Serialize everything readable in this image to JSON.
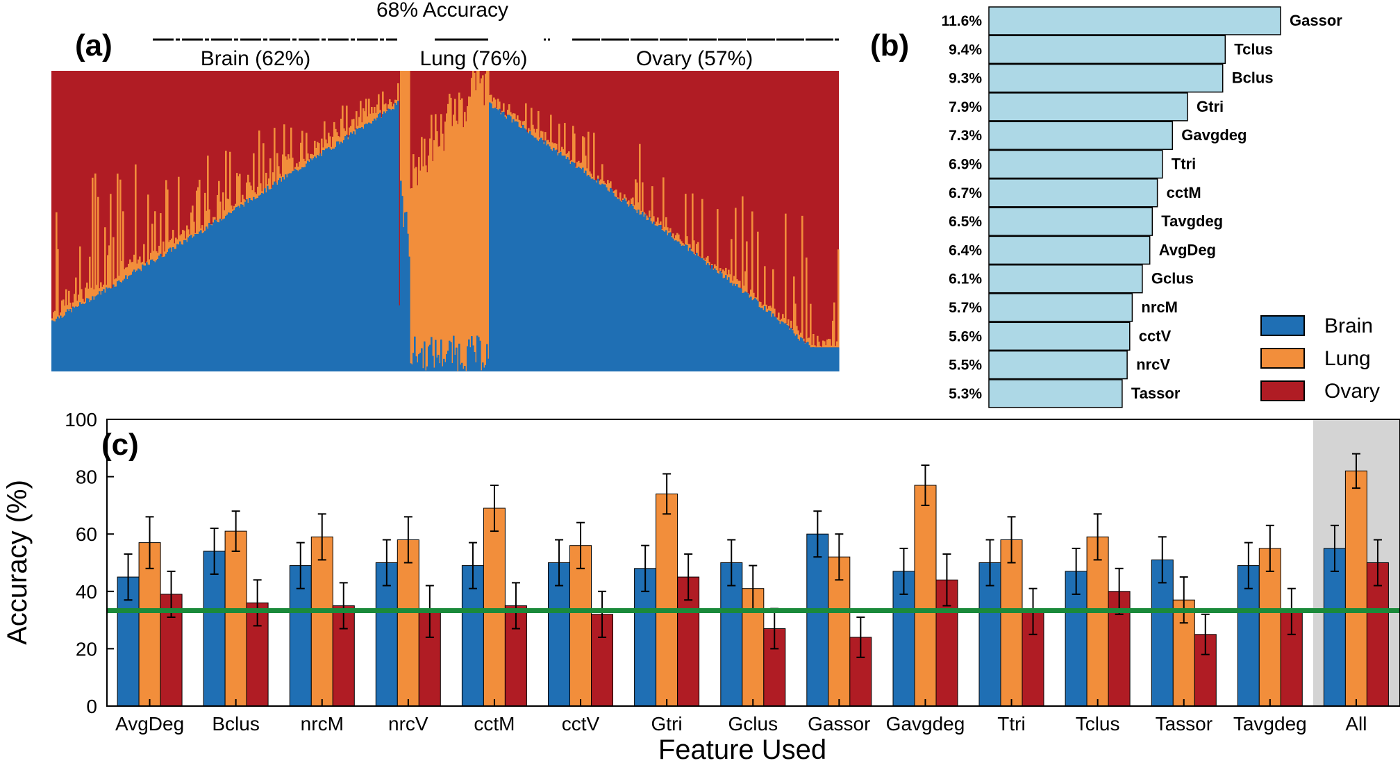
{
  "colors": {
    "brain": "#1f6fb4",
    "lung": "#f28e3b",
    "ovary": "#b01c24",
    "importance_bar": "#add8e6",
    "baseline": "#1a8a3a",
    "all_shade": "#d4d4d4"
  },
  "panel_a": {
    "letter": "(a)",
    "overall_label": "68% Accuracy",
    "group_labels": [
      "Brain (62%)",
      "Lung (76%)",
      "Ovary (57%)"
    ]
  },
  "panel_b": {
    "letter": "(b)"
  },
  "panel_c": {
    "letter": "(c)"
  },
  "legend": {
    "items": [
      {
        "label": "Brain",
        "color_key": "brain"
      },
      {
        "label": "Lung",
        "color_key": "lung"
      },
      {
        "label": "Ovary",
        "color_key": "ovary"
      }
    ]
  },
  "chart_data": [
    {
      "type": "area",
      "panel": "(a)",
      "title": "68% Accuracy",
      "description_groups": [
        "Brain (62%)",
        "Lung (76%)",
        "Ovary (57%)"
      ],
      "series": [
        {
          "name": "Brain",
          "note": "stacked per-sample class probability"
        },
        {
          "name": "Lung",
          "note": "stacked per-sample class probability"
        },
        {
          "name": "Ovary",
          "note": "stacked per-sample class probability"
        }
      ],
      "groups": [
        {
          "name": "Brain",
          "accuracy_pct": 62,
          "brain_start": 0.18,
          "brain_end": 0.89
        },
        {
          "name": "Lung",
          "accuracy_pct": 76,
          "lung_low": 0.03,
          "lung_high": 0.98
        },
        {
          "name": "Ovary",
          "accuracy_pct": 57,
          "brain_start": 0.79,
          "brain_end": 0.1
        }
      ]
    },
    {
      "type": "bar",
      "panel": "(b)",
      "orientation": "horizontal",
      "categories": [
        "Gassor",
        "Tclus",
        "Bclus",
        "Gtri",
        "Gavgdeg",
        "Ttri",
        "cctM",
        "Tavgdeg",
        "AvgDeg",
        "Gclus",
        "nrcM",
        "cctV",
        "nrcV",
        "Tassor"
      ],
      "value_labels": [
        "11.6%",
        "9.4%",
        "9.3%",
        "7.9%",
        "7.3%",
        "6.9%",
        "6.7%",
        "6.5%",
        "6.4%",
        "6.1%",
        "5.7%",
        "5.6%",
        "5.5%",
        "5.3%"
      ],
      "values": [
        11.6,
        9.4,
        9.3,
        7.9,
        7.3,
        6.9,
        6.7,
        6.5,
        6.4,
        6.1,
        5.7,
        5.6,
        5.5,
        5.3
      ]
    },
    {
      "type": "bar",
      "panel": "(c)",
      "categories": [
        "AvgDeg",
        "Bclus",
        "nrcM",
        "nrcV",
        "cctM",
        "cctV",
        "Gtri",
        "Gclus",
        "Gassor",
        "Gavgdeg",
        "Ttri",
        "Tclus",
        "Tassor",
        "Tavgdeg",
        "All"
      ],
      "xlabel": "Feature Used",
      "ylabel": "Accuracy (%)",
      "ylim": [
        0,
        100
      ],
      "yticks": [
        0,
        20,
        40,
        60,
        80,
        100
      ],
      "baseline": 33.3,
      "highlight_category": "All",
      "series": [
        {
          "name": "Brain",
          "values": [
            45,
            54,
            49,
            50,
            49,
            50,
            48,
            50,
            60,
            47,
            50,
            47,
            51,
            49,
            55
          ],
          "err": [
            8,
            8,
            8,
            8,
            8,
            8,
            8,
            8,
            8,
            8,
            8,
            8,
            8,
            8,
            8
          ]
        },
        {
          "name": "Lung",
          "values": [
            57,
            61,
            59,
            58,
            69,
            56,
            74,
            41,
            52,
            77,
            58,
            59,
            37,
            55,
            82
          ],
          "err": [
            9,
            7,
            8,
            8,
            8,
            8,
            7,
            8,
            8,
            7,
            8,
            8,
            8,
            8,
            6
          ]
        },
        {
          "name": "Ovary",
          "values": [
            39,
            36,
            35,
            33,
            35,
            32,
            45,
            27,
            24,
            44,
            33,
            40,
            25,
            33,
            50
          ],
          "err": [
            8,
            8,
            8,
            9,
            8,
            8,
            8,
            7,
            7,
            9,
            8,
            8,
            7,
            8,
            8
          ]
        }
      ]
    }
  ]
}
